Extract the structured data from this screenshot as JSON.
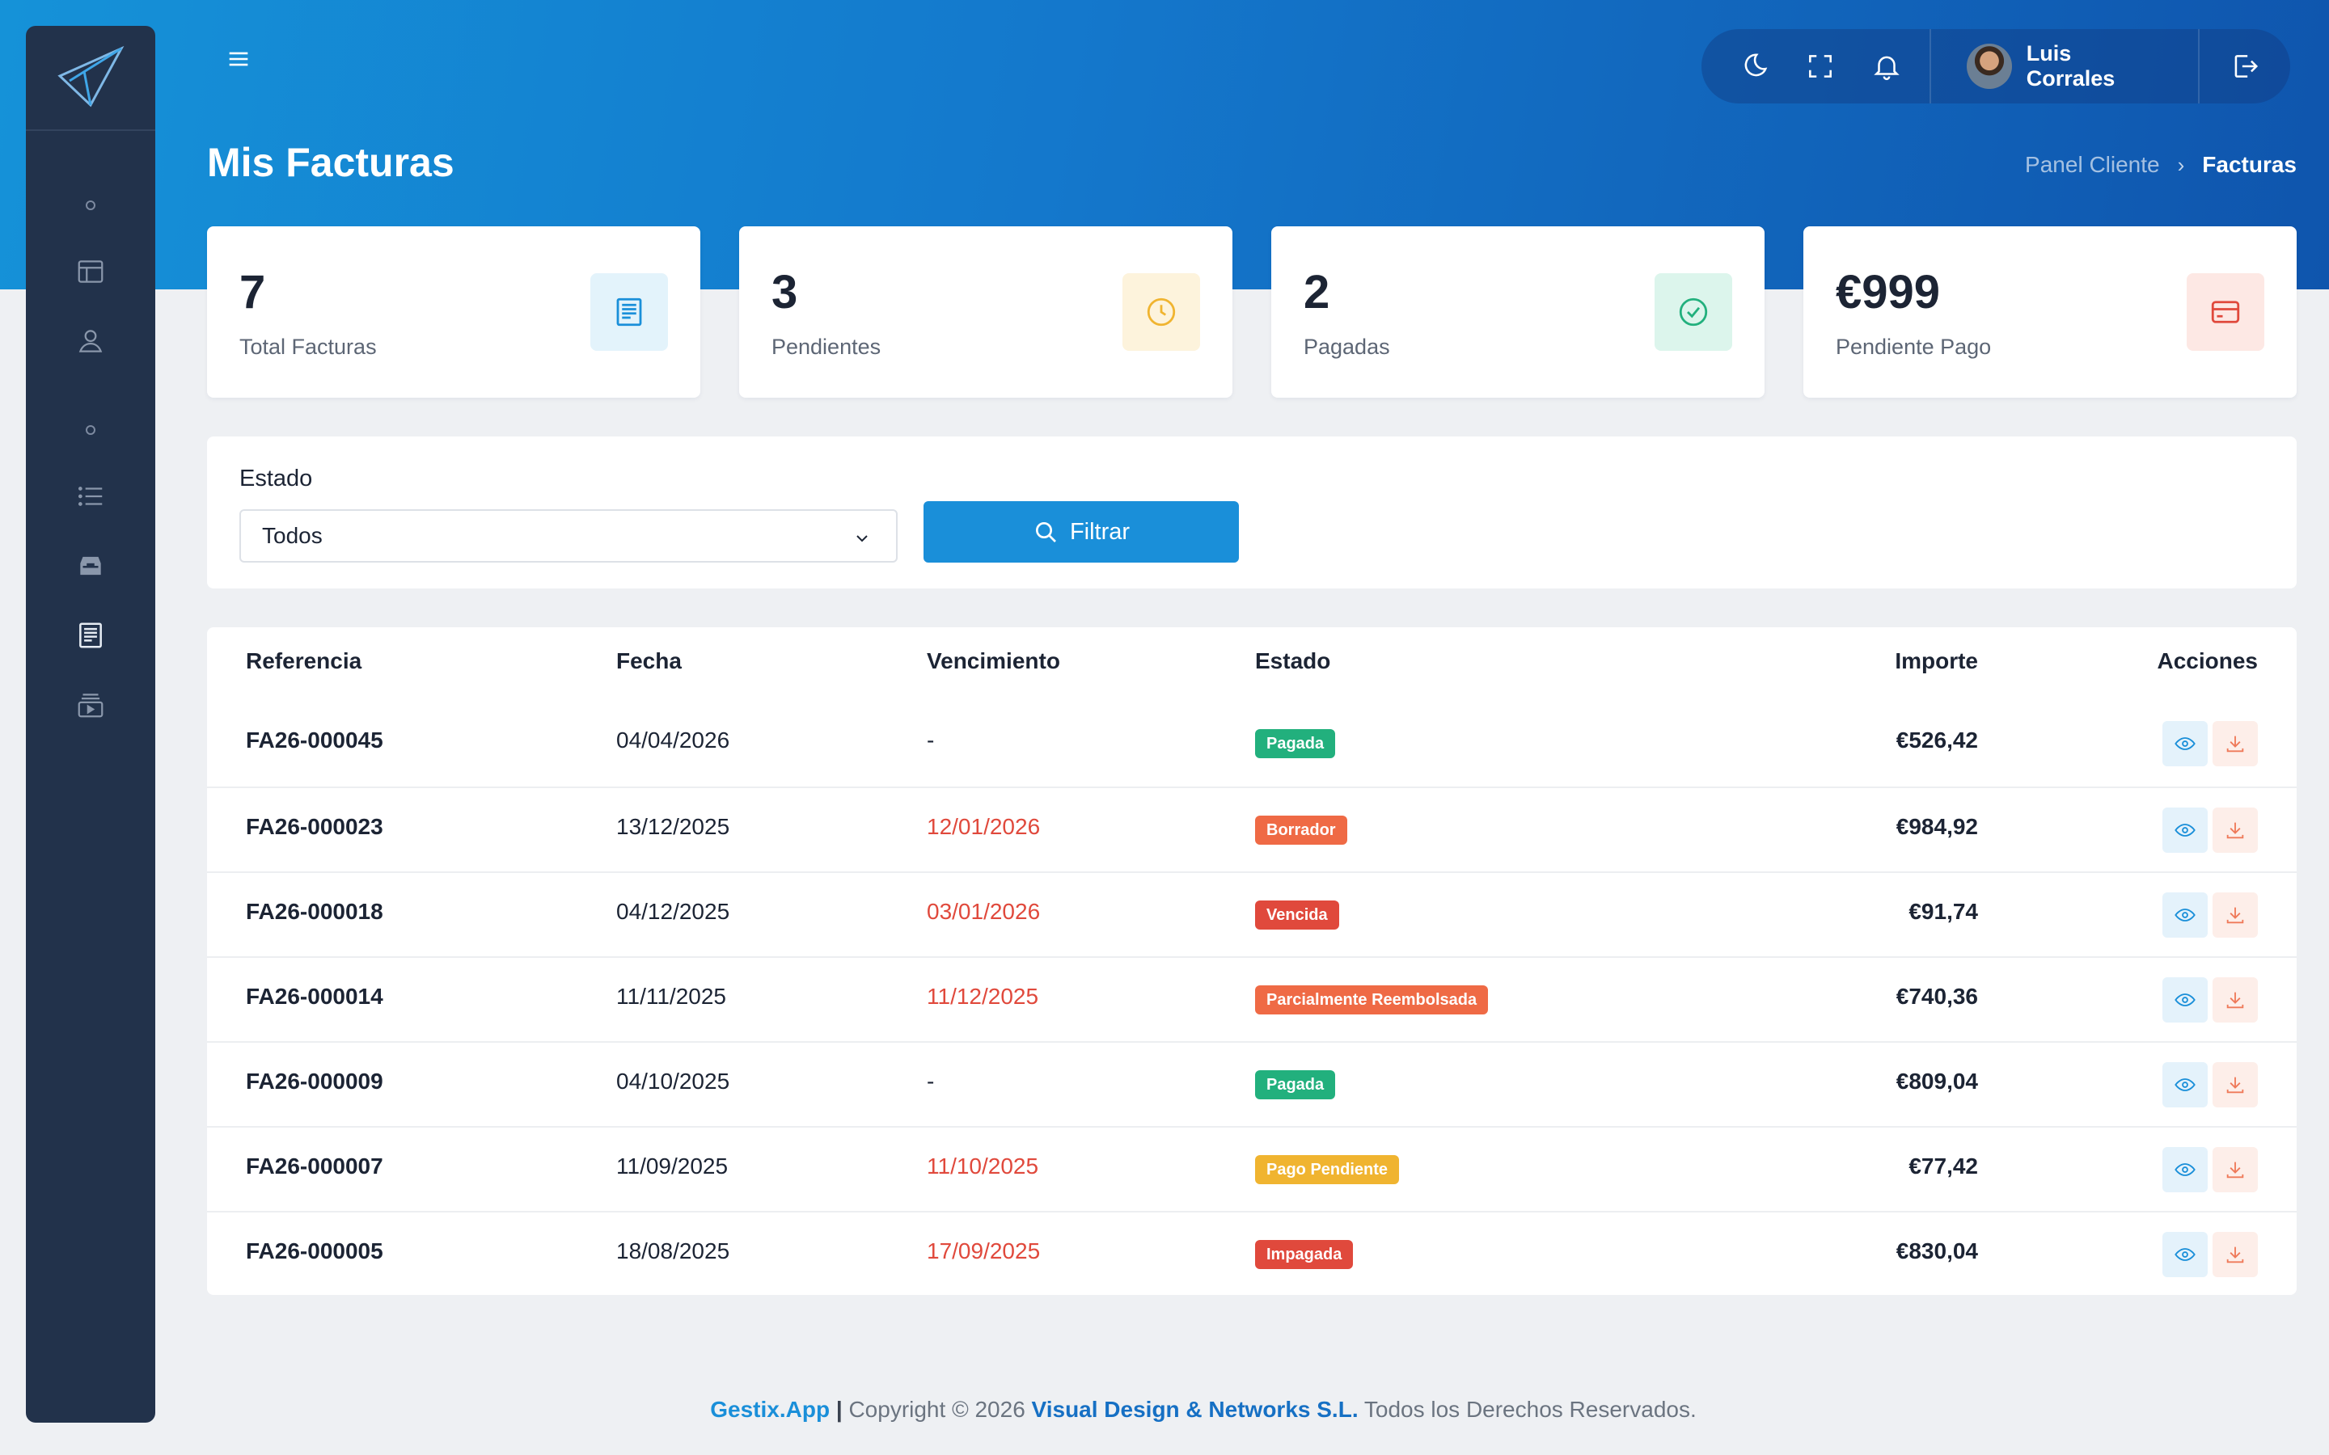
{
  "header": {
    "title": "Mis Facturas",
    "breadcrumb": {
      "parent": "Panel Cliente",
      "separator": "›",
      "current": "Facturas"
    },
    "user_name": "Luis Corrales"
  },
  "sidebar": {
    "icons": [
      "layout-icon",
      "user-icon",
      "list-icon",
      "inbox-icon",
      "invoice-icon",
      "media-icon"
    ],
    "active": "invoice-icon"
  },
  "stats": [
    {
      "value": "7",
      "label": "Total Facturas",
      "icon": "invoice-icon",
      "bg": "#e3f3fb",
      "color": "#1a8fd9"
    },
    {
      "value": "3",
      "label": "Pendientes",
      "icon": "clock-icon",
      "bg": "#fdf3dc",
      "color": "#f0b430"
    },
    {
      "value": "2",
      "label": "Pagadas",
      "icon": "check-circle-icon",
      "bg": "#dcf5ec",
      "color": "#22b07d"
    },
    {
      "value": "€999",
      "label": "Pendiente Pago",
      "icon": "credit-card-icon",
      "bg": "#fde8e4",
      "color": "#e0493c"
    }
  ],
  "filter": {
    "label": "Estado",
    "selected": "Todos",
    "button_label": "Filtrar"
  },
  "table": {
    "headers": {
      "reference": "Referencia",
      "date": "Fecha",
      "due": "Vencimiento",
      "status": "Estado",
      "amount": "Importe",
      "actions": "Acciones"
    },
    "rows": [
      {
        "reference": "FA26-000045",
        "date": "04/04/2026",
        "due": "-",
        "due_overdue": false,
        "status": "Pagada",
        "status_color": "#22b07d",
        "amount": "€526,42"
      },
      {
        "reference": "FA26-000023",
        "date": "13/12/2025",
        "due": "12/01/2026",
        "due_overdue": true,
        "status": "Borrador",
        "status_color": "#ef6a45",
        "amount": "€984,92"
      },
      {
        "reference": "FA26-000018",
        "date": "04/12/2025",
        "due": "03/01/2026",
        "due_overdue": true,
        "status": "Vencida",
        "status_color": "#e0493c",
        "amount": "€91,74"
      },
      {
        "reference": "FA26-000014",
        "date": "11/11/2025",
        "due": "11/12/2025",
        "due_overdue": true,
        "status": "Parcialmente Reembolsada",
        "status_color": "#ef6a45",
        "amount": "€740,36"
      },
      {
        "reference": "FA26-000009",
        "date": "04/10/2025",
        "due": "-",
        "due_overdue": false,
        "status": "Pagada",
        "status_color": "#22b07d",
        "amount": "€809,04"
      },
      {
        "reference": "FA26-000007",
        "date": "11/09/2025",
        "due": "11/10/2025",
        "due_overdue": true,
        "status": "Pago Pendiente",
        "status_color": "#f0b430",
        "amount": "€77,42"
      },
      {
        "reference": "FA26-000005",
        "date": "18/08/2025",
        "due": "17/09/2025",
        "due_overdue": true,
        "status": "Impagada",
        "status_color": "#e0493c",
        "amount": "€830,04"
      }
    ]
  },
  "footer": {
    "brand": "Gestix.App",
    "separator": "|",
    "copyright": "Copyright © 2026",
    "company": "Visual Design & Networks S.L.",
    "rights": "Todos los Derechos Reservados."
  }
}
